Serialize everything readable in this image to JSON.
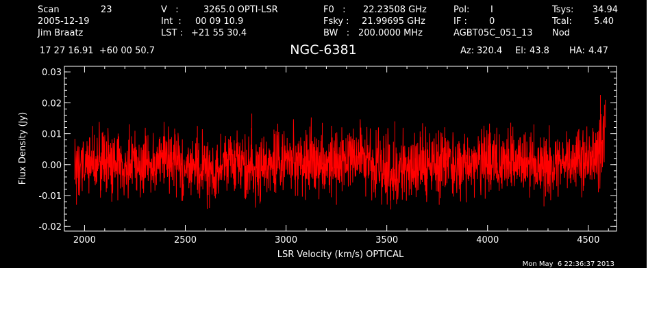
{
  "header": {
    "scan_label": "Scan",
    "scan_number": "23",
    "date": "2005-12-19",
    "observer": "Jim Braatz",
    "velocity_label": "V   :",
    "velocity_value": "3265.0 OPTI-LSR",
    "int_label": "Int  :",
    "int_value": "00 09 10.9",
    "lst_label": "LST :",
    "lst_value": "+21 55 30.4",
    "f0_label": "F0   :",
    "f0_value": "22.23508 GHz",
    "fsky_label": "Fsky :",
    "fsky_value": "21.99695 GHz",
    "bw_label": "BW   :",
    "bw_value": "200.0000 MHz",
    "pol_label": "Pol:",
    "pol_value": "I",
    "if_label": "IF :",
    "if_value": "0",
    "project": "AGBT05C_051_13",
    "tsys_label": "Tsys:",
    "tsys_value": "34.94",
    "tcal_label": "Tcal:",
    "tcal_value": "5.40",
    "mode": "Nod",
    "coords": "17 27 16.91  +60 00 50.7",
    "source": "NGC-6381",
    "az_label": "Az:",
    "az_value": "320.4",
    "el_label": "El:",
    "el_value": "43.8",
    "ha_label": "HA:",
    "ha_value": "4.47"
  },
  "timestamp": "Mon May  6 22:36:37 2013",
  "chart_data": {
    "type": "line",
    "xlabel": "LSR Velocity (km/s) OPTICAL",
    "ylabel": "Flux Density (Jy)",
    "xlim": [
      1900,
      4640
    ],
    "ylim": [
      -0.0215,
      0.0318
    ],
    "x_ticks": [
      2000,
      2500,
      3000,
      3500,
      4000,
      4500
    ],
    "x_tick_labels": [
      "2000",
      "2500",
      "3000",
      "3500",
      "4000",
      "4500"
    ],
    "y_ticks": [
      -0.02,
      -0.01,
      0.0,
      0.01,
      0.02,
      0.03
    ],
    "y_tick_labels": [
      "-0.02",
      "-0.01",
      "0.00",
      "0.01",
      "0.02",
      "0.03"
    ],
    "grid": false,
    "series": [
      {
        "color": "#ff0000",
        "x": [
          1950,
          2000,
          2050,
          2100,
          2150,
          2200,
          2250,
          2300,
          2350,
          2400,
          2450,
          2500,
          2550,
          2600,
          2650,
          2700,
          2750,
          2800,
          2850,
          2900,
          2950,
          3000,
          3050,
          3100,
          3150,
          3200,
          3250,
          3300,
          3350,
          3400,
          3450,
          3500,
          3550,
          3600,
          3650,
          3700,
          3750,
          3800,
          3850,
          3900,
          3950,
          4000,
          4050,
          4100,
          4150,
          4200,
          4250,
          4300,
          4350,
          4400,
          4450,
          4500,
          4530,
          4550,
          4560,
          4570,
          4580
        ],
        "mean": [
          0.0,
          0.001,
          0.001,
          0.001,
          0.002,
          0.001,
          0.0,
          0.0,
          0.001,
          0.002,
          0.001,
          0.0,
          -0.001,
          -0.001,
          0.0,
          0.001,
          0.001,
          0.0,
          -0.001,
          0.0,
          0.001,
          0.002,
          0.002,
          0.001,
          0.0,
          0.0,
          0.001,
          0.002,
          0.001,
          0.0,
          -0.001,
          -0.002,
          -0.002,
          -0.001,
          0.0,
          0.001,
          0.001,
          0.0,
          -0.001,
          0.0,
          0.001,
          0.001,
          0.0,
          0.0,
          0.001,
          0.001,
          0.0,
          -0.001,
          0.0,
          0.001,
          0.001,
          0.002,
          0.003,
          0.004,
          0.006,
          0.01,
          0.012
        ],
        "envelope": [
          0.006,
          0.006,
          0.006,
          0.006,
          0.006,
          0.006,
          0.006,
          0.006,
          0.006,
          0.006,
          0.006,
          0.006,
          0.006,
          0.006,
          0.006,
          0.006,
          0.006,
          0.006,
          0.006,
          0.006,
          0.006,
          0.006,
          0.006,
          0.006,
          0.006,
          0.006,
          0.006,
          0.006,
          0.006,
          0.006,
          0.006,
          0.006,
          0.006,
          0.006,
          0.006,
          0.006,
          0.006,
          0.006,
          0.006,
          0.006,
          0.006,
          0.006,
          0.006,
          0.006,
          0.006,
          0.006,
          0.006,
          0.006,
          0.006,
          0.006,
          0.006,
          0.006,
          0.006,
          0.007,
          0.008,
          0.008,
          0.008
        ],
        "extremes": [
          {
            "x": 2040,
            "y": 0.0125
          },
          {
            "x": 2560,
            "y": 0.0125
          },
          {
            "x": 2830,
            "y": 0.0165
          },
          {
            "x": 3180,
            "y": 0.0135
          },
          {
            "x": 3540,
            "y": 0.014
          },
          {
            "x": 4230,
            "y": 0.013
          },
          {
            "x": 4560,
            "y": 0.0225
          },
          {
            "x": 4585,
            "y": 0.021
          },
          {
            "x": 1960,
            "y": -0.013
          },
          {
            "x": 2620,
            "y": -0.014
          },
          {
            "x": 3250,
            "y": -0.013
          },
          {
            "x": 3520,
            "y": -0.0145
          },
          {
            "x": 4280,
            "y": -0.0135
          },
          {
            "x": 3760,
            "y": -0.013
          }
        ]
      }
    ]
  }
}
